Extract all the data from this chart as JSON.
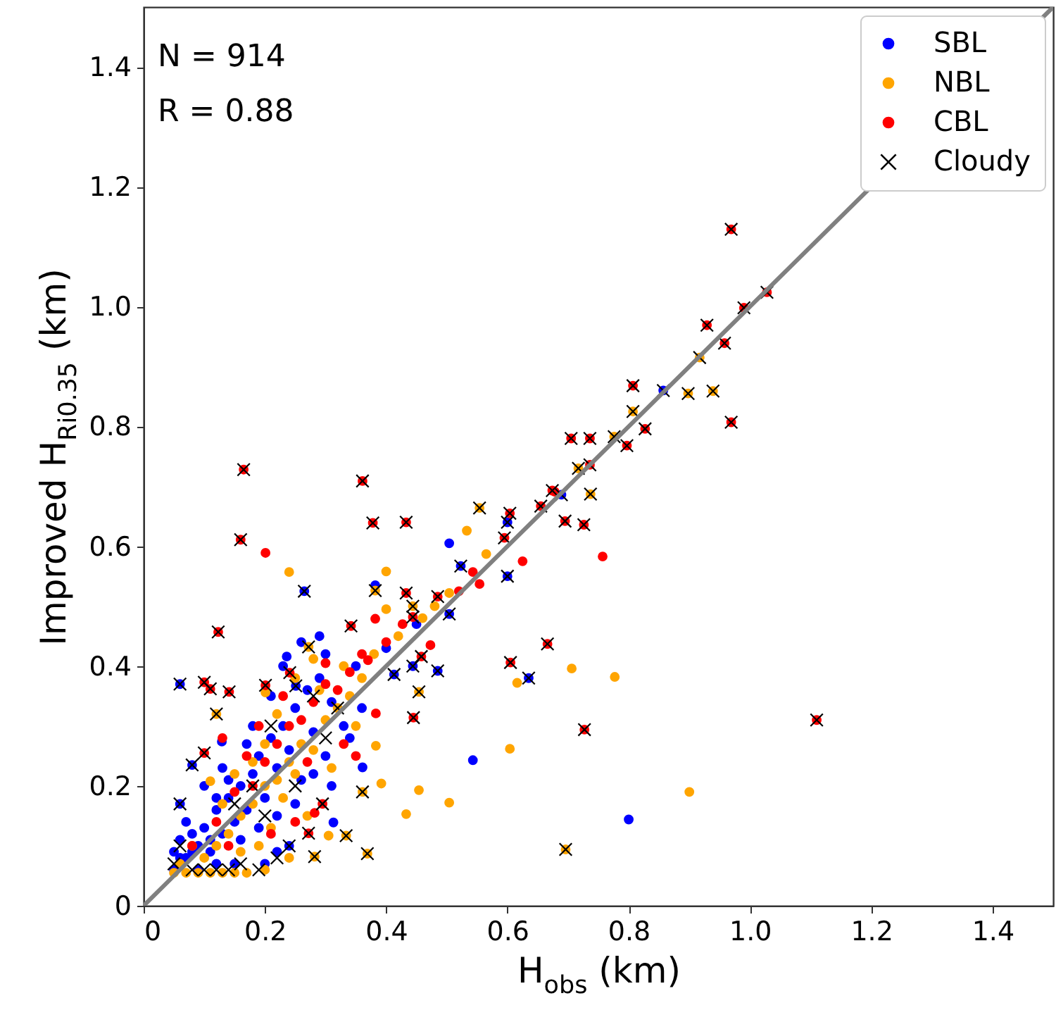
{
  "chart_data": {
    "type": "scatter",
    "xlabel": "H$_{obs}$ (km)",
    "ylabel": "Improved H$_{Ri0.35}$ (km)",
    "annotations": [
      "N = 914",
      "R = 0.88"
    ],
    "xlim": [
      0,
      1.5
    ],
    "ylim": [
      0,
      1.5
    ],
    "xticks": [
      0,
      0.2,
      0.4,
      0.6,
      0.8,
      {
        "value": 1,
        "label": "1.0"
      },
      1.2,
      1.4
    ],
    "yticks": [
      0,
      0.2,
      0.4,
      0.6,
      0.8,
      {
        "value": 1,
        "label": "1.0"
      },
      1.2,
      1.4
    ],
    "legend": "top right",
    "series": [
      {
        "name": "SBL",
        "color": "#0000ff",
        "marker": "circle",
        "x": [
          0.06,
          0.08,
          0.06,
          0.129,
          0.265,
          0.236,
          0.29,
          0.251,
          0.313,
          0.361,
          0.382,
          0.413,
          0.444,
          0.485,
          0.504,
          0.523,
          0.504,
          0.543,
          0.6,
          0.6,
          0.635,
          0.689,
          0.8,
          0.857,
          0.05,
          0.05,
          0.06,
          0.07,
          0.08,
          0.09,
          0.1,
          0.11,
          0.12,
          0.13,
          0.14,
          0.15,
          0.16,
          0.17,
          0.18,
          0.19,
          0.2,
          0.21,
          0.22,
          0.23,
          0.24,
          0.25,
          0.26,
          0.27,
          0.28,
          0.29,
          0.3,
          0.31,
          0.33,
          0.35,
          0.07,
          0.1,
          0.13,
          0.16,
          0.19,
          0.22,
          0.24,
          0.2,
          0.15,
          0.09,
          0.06,
          0.11,
          0.18,
          0.21,
          0.23,
          0.26,
          0.17,
          0.14,
          0.12,
          0.28,
          0.31,
          0.34,
          0.36,
          0.4,
          0.45,
          0.25,
          0.22,
          0.08,
          0.12,
          0.3
        ],
        "values": [
          0.37,
          0.235,
          0.17,
          0.274,
          0.525,
          0.416,
          0.45,
          0.367,
          0.139,
          0.231,
          0.535,
          0.386,
          0.4,
          0.392,
          0.487,
          0.567,
          0.605,
          0.243,
          0.64,
          0.55,
          0.38,
          0.686,
          0.144,
          0.86,
          0.06,
          0.09,
          0.11,
          0.08,
          0.12,
          0.1,
          0.13,
          0.09,
          0.16,
          0.12,
          0.18,
          0.14,
          0.2,
          0.16,
          0.22,
          0.25,
          0.18,
          0.28,
          0.23,
          0.3,
          0.26,
          0.33,
          0.21,
          0.36,
          0.29,
          0.38,
          0.25,
          0.34,
          0.3,
          0.4,
          0.14,
          0.2,
          0.23,
          0.11,
          0.13,
          0.09,
          0.1,
          0.07,
          0.07,
          0.06,
          0.08,
          0.11,
          0.3,
          0.35,
          0.4,
          0.44,
          0.27,
          0.21,
          0.18,
          0.22,
          0.2,
          0.28,
          0.33,
          0.43,
          0.47,
          0.17,
          0.15,
          0.09,
          0.07,
          0.42
        ]
      },
      {
        "name": "NBL",
        "color": "#ffa500",
        "marker": "circle",
        "x": [
          0.12,
          0.11,
          0.201,
          0.24,
          0.4,
          0.383,
          0.392,
          0.454,
          0.504,
          0.433,
          0.361,
          0.334,
          0.369,
          0.282,
          0.305,
          0.28,
          0.272,
          0.382,
          0.4,
          0.444,
          0.454,
          0.504,
          0.533,
          0.554,
          0.565,
          0.604,
          0.616,
          0.706,
          0.777,
          0.696,
          0.9,
          0.717,
          0.737,
          0.776,
          0.807,
          0.898,
          0.939,
          0.917,
          0.05,
          0.07,
          0.09,
          0.11,
          0.13,
          0.15,
          0.17,
          0.06,
          0.08,
          0.1,
          0.12,
          0.14,
          0.16,
          0.18,
          0.2,
          0.22,
          0.24,
          0.26,
          0.28,
          0.3,
          0.32,
          0.34,
          0.19,
          0.21,
          0.23,
          0.25,
          0.27,
          0.18,
          0.2,
          0.15,
          0.13,
          0.29,
          0.33,
          0.36,
          0.38,
          0.42,
          0.46,
          0.48,
          0.22,
          0.25,
          0.16,
          0.2,
          0.24,
          0.31,
          0.35
        ],
        "values": [
          0.32,
          0.208,
          0.356,
          0.557,
          0.558,
          0.267,
          0.204,
          0.193,
          0.172,
          0.153,
          0.19,
          0.117,
          0.087,
          0.082,
          0.117,
          0.412,
          0.432,
          0.526,
          0.495,
          0.5,
          0.357,
          0.522,
          0.626,
          0.664,
          0.587,
          0.262,
          0.372,
          0.396,
          0.382,
          0.094,
          0.19,
          0.73,
          0.687,
          0.783,
          0.825,
          0.855,
          0.859,
          0.915,
          0.055,
          0.055,
          0.055,
          0.055,
          0.055,
          0.055,
          0.055,
          0.07,
          0.1,
          0.08,
          0.1,
          0.12,
          0.15,
          0.17,
          0.2,
          0.21,
          0.24,
          0.27,
          0.26,
          0.31,
          0.33,
          0.35,
          0.1,
          0.13,
          0.18,
          0.22,
          0.15,
          0.24,
          0.27,
          0.22,
          0.17,
          0.36,
          0.4,
          0.38,
          0.42,
          0.45,
          0.48,
          0.5,
          0.32,
          0.38,
          0.09,
          0.06,
          0.08,
          0.23,
          0.3
        ]
      },
      {
        "name": "CBL",
        "color": "#ff0000",
        "marker": "circle",
        "x": [
          0.165,
          0.16,
          0.201,
          0.361,
          0.378,
          0.433,
          0.123,
          0.1,
          0.11,
          0.141,
          0.201,
          0.1,
          0.241,
          0.3,
          0.37,
          0.342,
          0.382,
          0.427,
          0.444,
          0.433,
          0.485,
          0.473,
          0.458,
          0.445,
          0.383,
          0.52,
          0.543,
          0.554,
          0.595,
          0.604,
          0.625,
          0.605,
          0.666,
          0.655,
          0.678,
          0.674,
          0.695,
          0.726,
          0.736,
          0.705,
          0.736,
          0.797,
          0.827,
          0.807,
          0.757,
          0.727,
          0.929,
          0.958,
          0.99,
          1.028,
          0.969,
          0.969,
          1.11,
          0.272,
          0.282,
          0.295,
          0.08,
          0.12,
          0.15,
          0.18,
          0.2,
          0.22,
          0.24,
          0.26,
          0.28,
          0.3,
          0.32,
          0.34,
          0.36,
          0.4,
          0.19,
          0.17,
          0.23,
          0.27,
          0.25,
          0.14,
          0.21,
          0.33,
          0.35,
          0.13
        ],
        "values": [
          0.728,
          0.611,
          0.589,
          0.709,
          0.639,
          0.64,
          0.457,
          0.373,
          0.362,
          0.357,
          0.368,
          0.255,
          0.389,
          0.405,
          0.41,
          0.467,
          0.479,
          0.47,
          0.482,
          0.522,
          0.516,
          0.435,
          0.416,
          0.314,
          0.321,
          0.525,
          0.557,
          0.537,
          0.614,
          0.655,
          0.575,
          0.406,
          0.437,
          0.667,
          0.691,
          0.693,
          0.642,
          0.636,
          0.736,
          0.78,
          0.78,
          0.768,
          0.796,
          0.868,
          0.583,
          0.294,
          0.969,
          0.939,
          0.998,
          1.024,
          1.129,
          0.807,
          0.31,
          0.121,
          0.155,
          0.17,
          0.1,
          0.14,
          0.19,
          0.2,
          0.24,
          0.27,
          0.3,
          0.31,
          0.34,
          0.37,
          0.36,
          0.39,
          0.42,
          0.44,
          0.3,
          0.25,
          0.35,
          0.24,
          0.14,
          0.1,
          0.12,
          0.27,
          0.25,
          0.28
        ]
      },
      {
        "name": "Cloudy",
        "color": "#000000",
        "marker": "cross",
        "x": [
          0.06,
          0.08,
          0.06,
          0.265,
          0.251,
          0.413,
          0.444,
          0.485,
          0.504,
          0.523,
          0.6,
          0.6,
          0.635,
          0.689,
          0.857,
          0.12,
          0.272,
          0.382,
          0.444,
          0.454,
          0.554,
          0.361,
          0.334,
          0.369,
          0.282,
          0.696,
          0.737,
          0.776,
          0.807,
          0.898,
          0.939,
          0.917,
          0.717,
          0.165,
          0.16,
          0.361,
          0.378,
          0.433,
          0.123,
          0.1,
          0.11,
          0.141,
          0.201,
          0.1,
          0.241,
          0.342,
          0.444,
          0.433,
          0.485,
          0.458,
          0.445,
          0.595,
          0.604,
          0.605,
          0.666,
          0.655,
          0.674,
          0.695,
          0.726,
          0.736,
          0.705,
          0.736,
          0.797,
          0.827,
          0.807,
          0.727,
          0.929,
          0.958,
          0.99,
          1.028,
          0.969,
          0.969,
          1.11,
          0.272,
          0.295,
          0.05,
          0.06,
          0.08,
          0.1,
          0.12,
          0.14,
          0.16,
          0.19,
          0.22,
          0.24,
          0.2,
          0.15,
          0.25,
          0.3,
          0.32,
          0.28,
          0.21,
          0.18
        ],
        "values": [
          0.37,
          0.235,
          0.17,
          0.525,
          0.367,
          0.386,
          0.4,
          0.392,
          0.487,
          0.567,
          0.64,
          0.55,
          0.38,
          0.686,
          0.86,
          0.32,
          0.432,
          0.526,
          0.5,
          0.357,
          0.664,
          0.19,
          0.117,
          0.087,
          0.082,
          0.094,
          0.687,
          0.783,
          0.825,
          0.855,
          0.859,
          0.915,
          0.73,
          0.728,
          0.611,
          0.709,
          0.639,
          0.64,
          0.457,
          0.373,
          0.362,
          0.357,
          0.368,
          0.255,
          0.389,
          0.467,
          0.482,
          0.522,
          0.516,
          0.416,
          0.314,
          0.614,
          0.655,
          0.406,
          0.437,
          0.667,
          0.693,
          0.642,
          0.636,
          0.736,
          0.78,
          0.78,
          0.768,
          0.796,
          0.868,
          0.294,
          0.969,
          0.939,
          0.998,
          1.024,
          1.129,
          0.807,
          0.31,
          0.121,
          0.17,
          0.07,
          0.1,
          0.06,
          0.06,
          0.06,
          0.06,
          0.07,
          0.06,
          0.08,
          0.1,
          0.15,
          0.17,
          0.2,
          0.28,
          0.33,
          0.35,
          0.3,
          0.2
        ]
      },
      {
        "type": "line",
        "color": "#808080",
        "line_style": "solid",
        "x": [
          0,
          1.5
        ],
        "values": [
          0,
          1.5
        ]
      }
    ]
  }
}
